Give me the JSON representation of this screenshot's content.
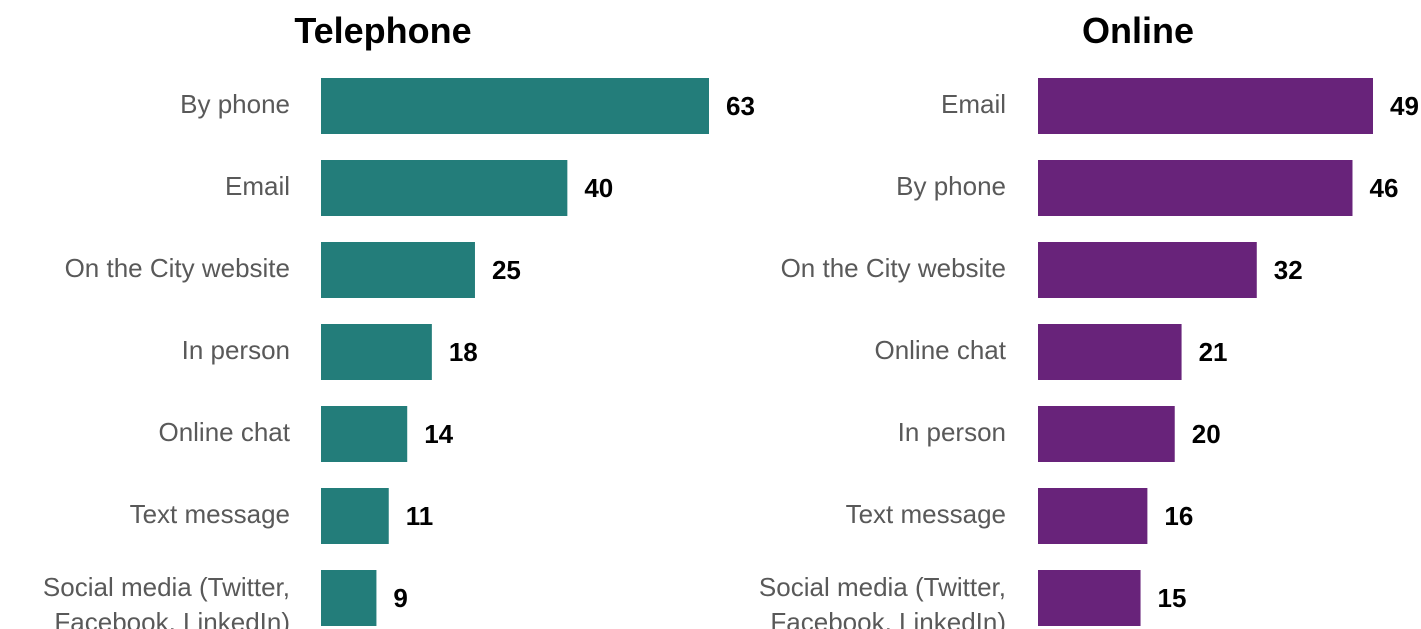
{
  "chart_data": [
    {
      "type": "bar",
      "orientation": "horizontal",
      "title": "Telephone",
      "color": "#237d7a",
      "categories": [
        "By phone",
        "Email",
        "On the City website",
        "In person",
        "Online chat",
        "Text message",
        [
          "Social media (Twitter,",
          "Facebook, LinkedIn)"
        ]
      ],
      "values": [
        63,
        40,
        25,
        18,
        14,
        11,
        9
      ],
      "value_labels": [
        "63",
        "40",
        "25",
        "18",
        "14",
        "11",
        "9"
      ],
      "xlim": [
        0,
        63
      ],
      "grid": false,
      "legend": "none"
    },
    {
      "type": "bar",
      "orientation": "horizontal",
      "title": "Online",
      "color": "#68237a",
      "categories": [
        "Email",
        "By phone",
        "On the City website",
        "Online chat",
        "In person",
        "Text message",
        [
          "Social media (Twitter,",
          "Facebook, LinkedIn)"
        ]
      ],
      "values": [
        49,
        46,
        32,
        21,
        20,
        16,
        15
      ],
      "value_labels": [
        "49",
        "46",
        "32",
        "21",
        "20",
        "16",
        "15"
      ],
      "xlim": [
        0,
        49
      ],
      "grid": false,
      "legend": "none"
    }
  ]
}
